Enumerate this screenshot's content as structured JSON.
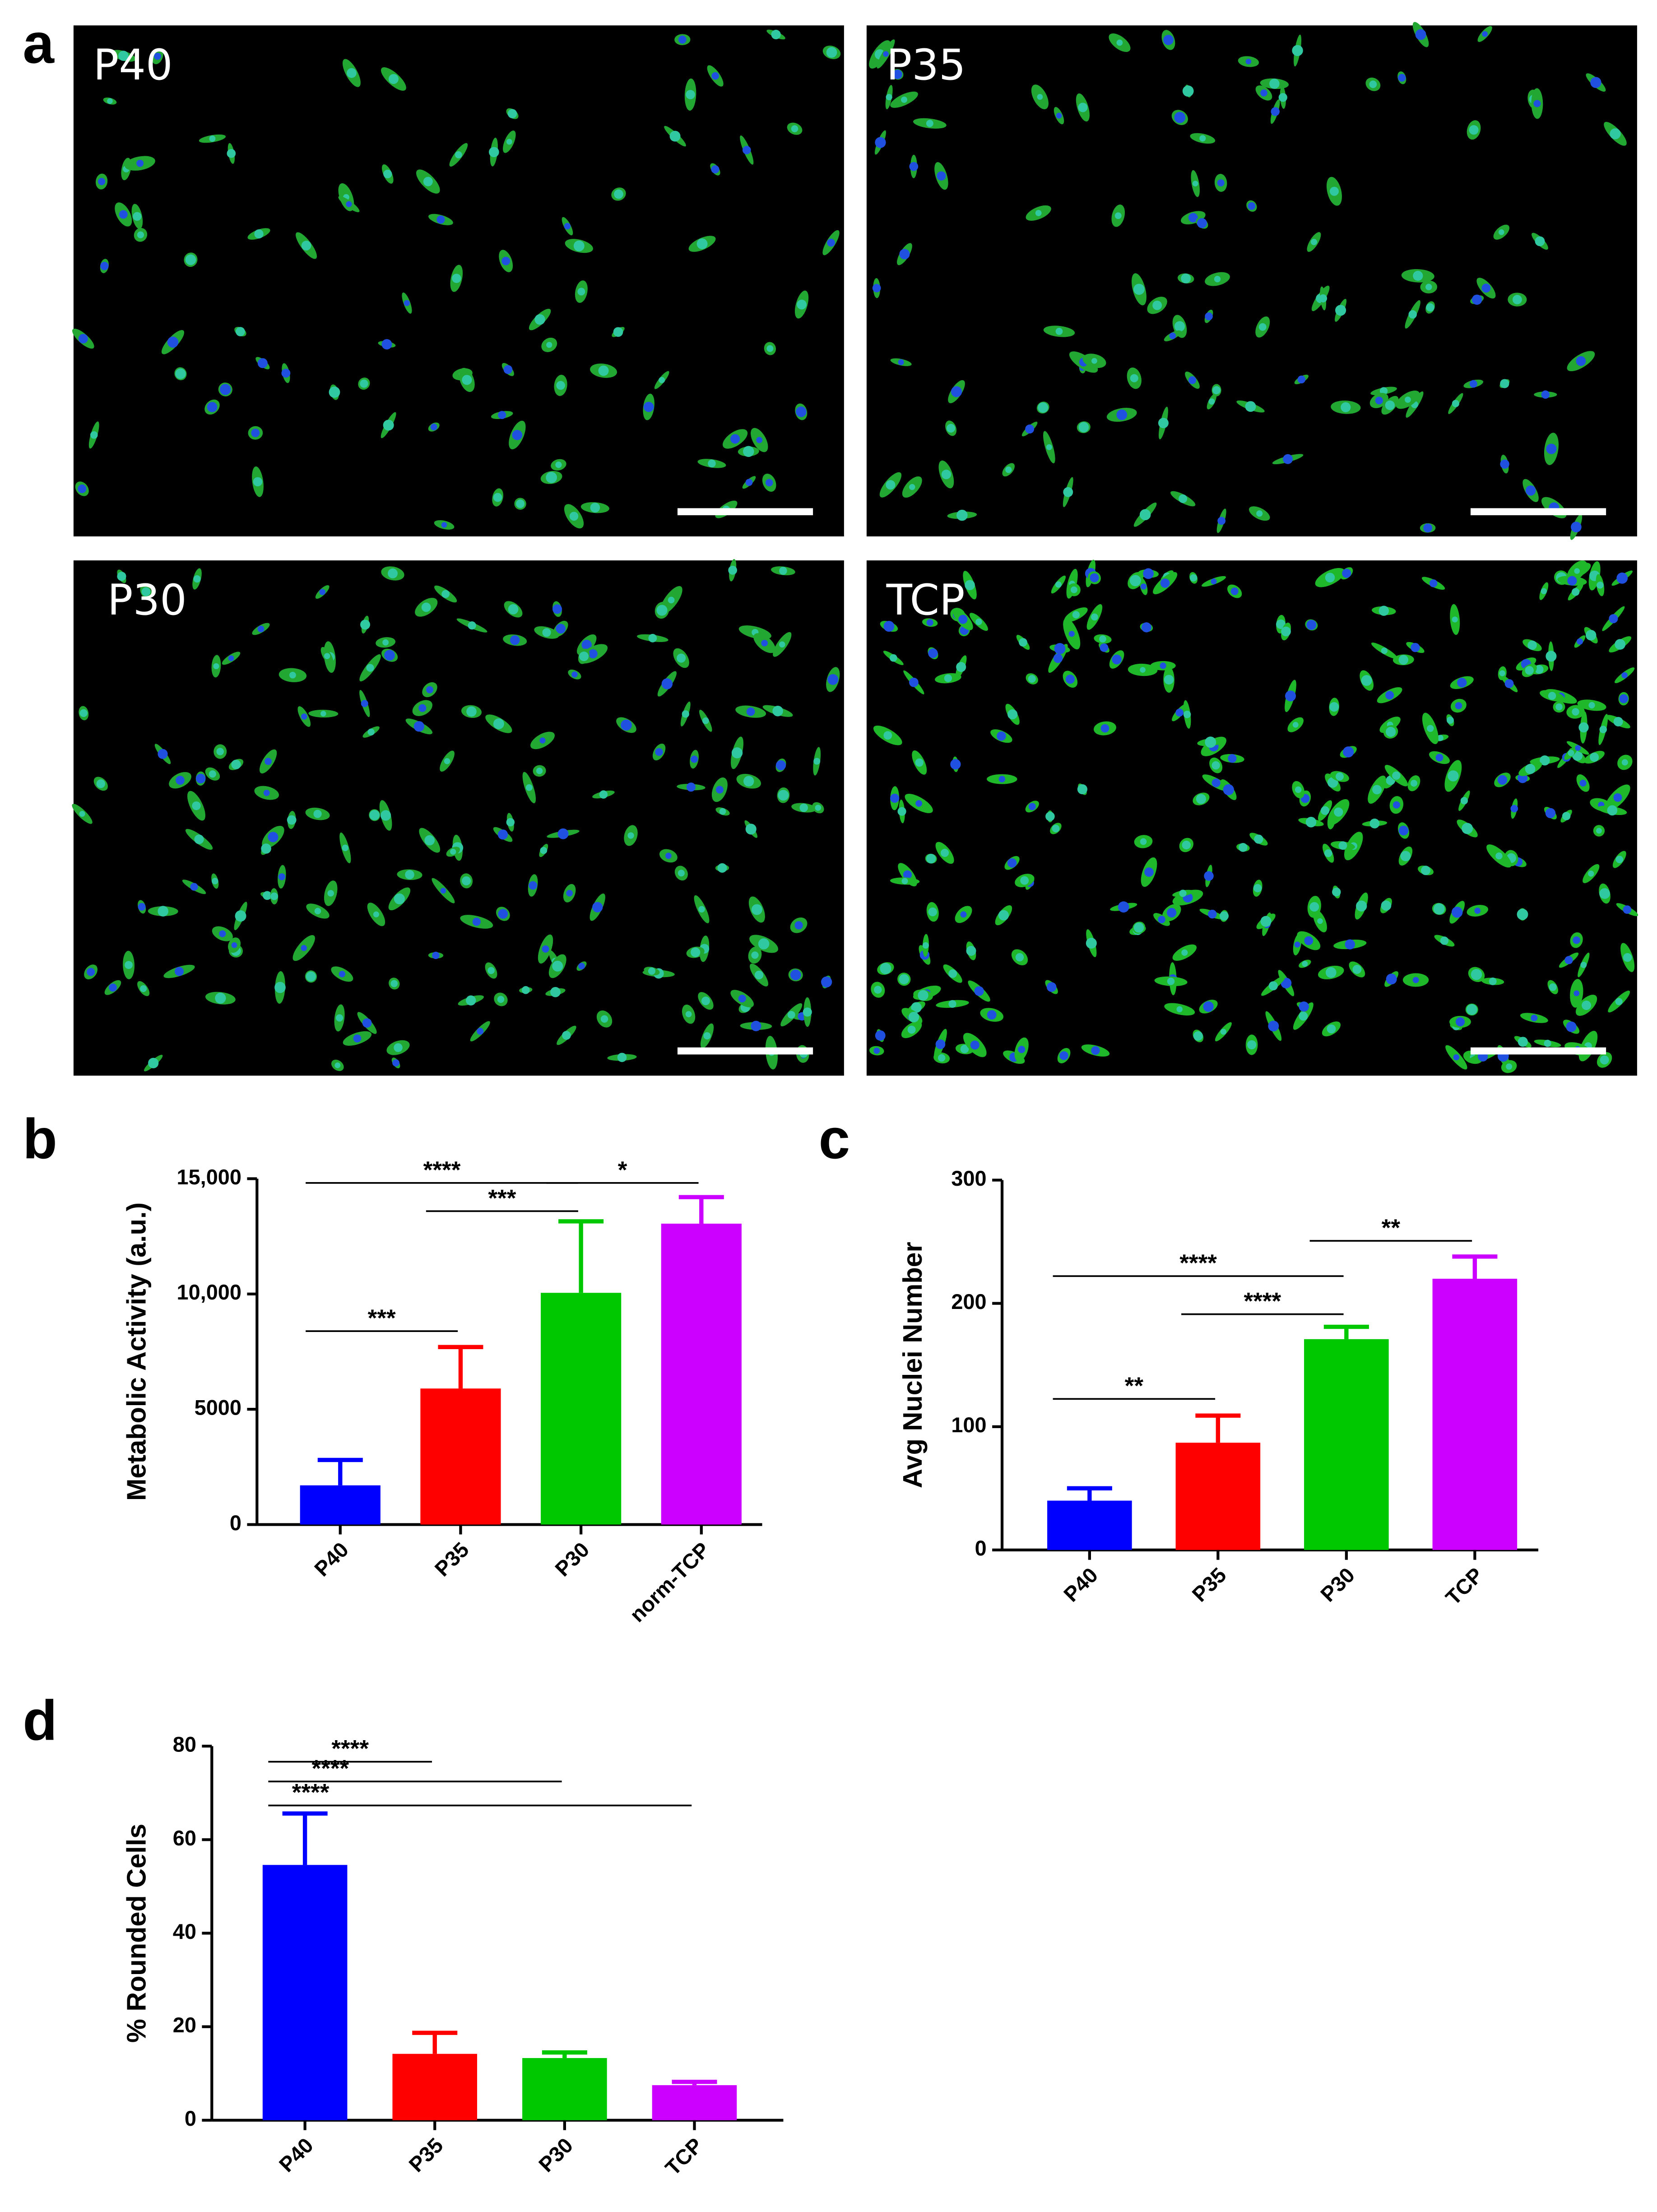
{
  "panels": [
    "a",
    "b",
    "c",
    "d"
  ],
  "images": [
    "P40",
    "P35",
    "P30",
    "TCP"
  ],
  "chart_data": [
    {
      "type": "bar",
      "ylabel": "Metabolic  Activity (a.u.)",
      "categories": [
        "P40",
        "P35",
        "P30",
        "norm-TCP"
      ],
      "values": [
        1700,
        5900,
        10050,
        13050
      ],
      "errors": [
        1100,
        1800,
        3100,
        1150
      ],
      "colors": [
        "#0000ff",
        "#ff0000",
        "#00c800",
        "#cc00ff"
      ],
      "ylim": [
        0,
        15000
      ],
      "yticks": [
        0,
        5000,
        {
          "value": 10000,
          "label": "10,000"
        },
        {
          "value": 15000,
          "label": "15,000"
        }
      ],
      "annotations": [
        {
          "text": "****",
          "from": 0,
          "to": 2
        },
        {
          "text": "*",
          "from": 2,
          "to": 3
        },
        {
          "text": "***",
          "from": 1,
          "to": 2
        },
        {
          "text": "***",
          "from": 0,
          "to": 1
        }
      ]
    },
    {
      "type": "bar",
      "ylabel": "Avg Nuclei  Number",
      "categories": [
        "P40",
        "P35",
        "P30",
        "TCP"
      ],
      "values": [
        40,
        87,
        171,
        220
      ],
      "errors": [
        10,
        22,
        10,
        18
      ],
      "colors": [
        "#0000ff",
        "#ff0000",
        "#00c800",
        "#cc00ff"
      ],
      "ylim": [
        0,
        300
      ],
      "yticks": [
        0,
        100,
        200,
        300
      ],
      "annotations": [
        {
          "text": "**",
          "from": 2,
          "to": 3
        },
        {
          "text": "****",
          "from": 0,
          "to": 2
        },
        {
          "text": "****",
          "from": 1,
          "to": 2
        },
        {
          "text": "**",
          "from": 0,
          "to": 1
        }
      ]
    },
    {
      "type": "bar",
      "ylabel": "% Rounded  Cells",
      "categories": [
        "P40",
        "P35",
        "P30",
        "TCP"
      ],
      "values": [
        54.6,
        14.2,
        13.3,
        7.5
      ],
      "errors": [
        11,
        4.5,
        1.2,
        0.7
      ],
      "colors": [
        "#0000ff",
        "#ff0000",
        "#00c800",
        "#cc00ff"
      ],
      "ylim": [
        0,
        80
      ],
      "yticks": [
        0,
        20,
        40,
        60,
        80
      ],
      "annotations": [
        {
          "text": "****",
          "from": 0,
          "to": 1
        },
        {
          "text": "****",
          "from": 0,
          "to": 2
        },
        {
          "text": "****",
          "from": 0,
          "to": 3
        }
      ]
    }
  ]
}
